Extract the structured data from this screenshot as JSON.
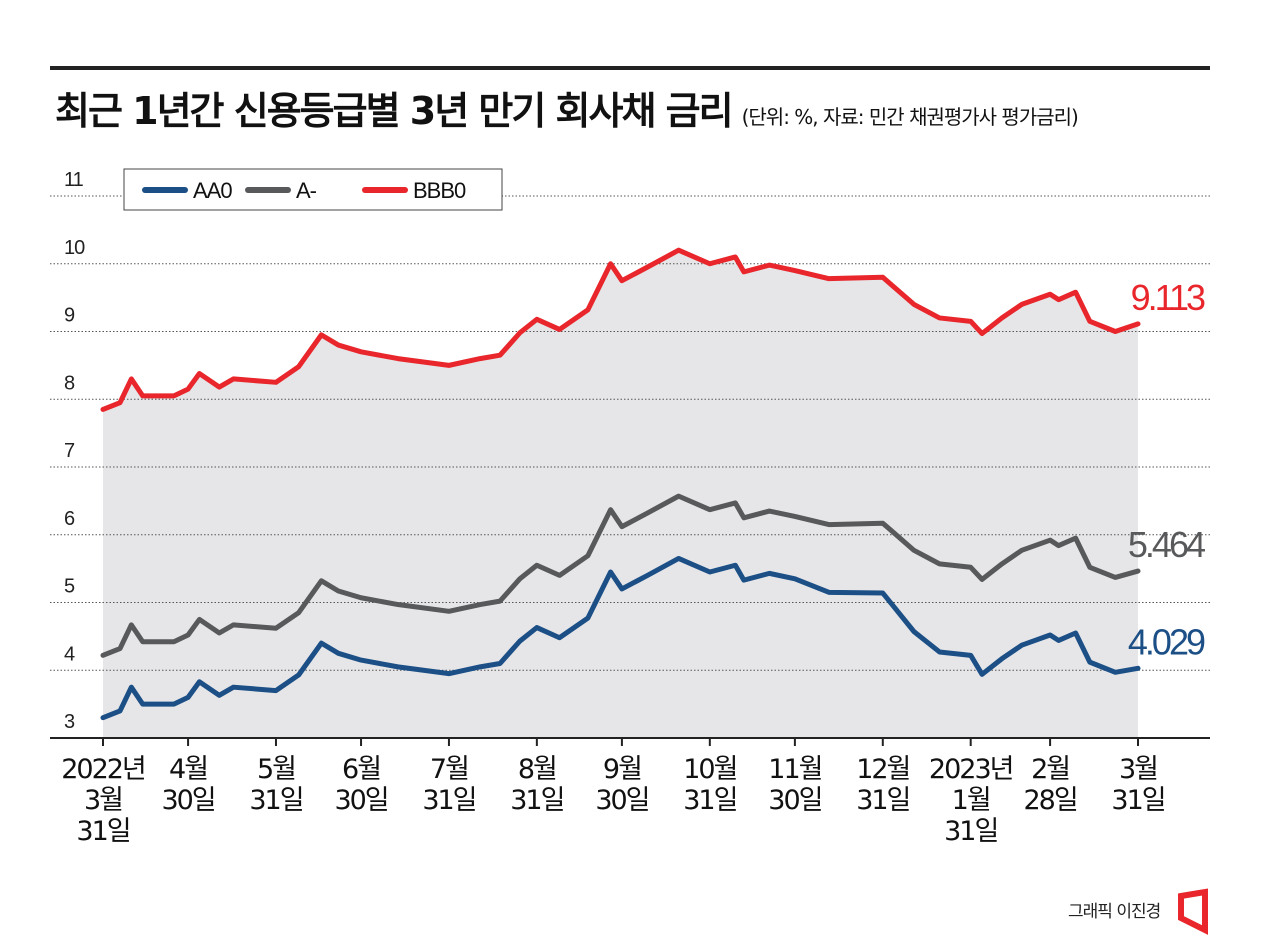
{
  "title": "최근 1년간 신용등급별 3년 만기 회사채 금리",
  "subtitle": "(단위: %, 자료: 민간 채권평가사 평가금리)",
  "credit": "그래픽 이진경",
  "chart_data": {
    "type": "line",
    "title": "최근 1년간 신용등급별 3년 만기 회사채 금리",
    "ylim": [
      3,
      11
    ],
    "yticks": [
      "3",
      "4",
      "5",
      "6",
      "7",
      "8",
      "9",
      "10",
      "11"
    ],
    "grid": true,
    "legend": "top-left",
    "xlim": [
      "2022-03-31",
      "2023-03-31"
    ],
    "xticks": [
      {
        "date": "2022-03-31",
        "label": [
          "2022년",
          "3월",
          "31일"
        ]
      },
      {
        "date": "2022-04-30",
        "label": [
          "4월",
          "30일"
        ]
      },
      {
        "date": "2022-05-31",
        "label": [
          "5월",
          "31일"
        ]
      },
      {
        "date": "2022-06-30",
        "label": [
          "6월",
          "30일"
        ]
      },
      {
        "date": "2022-07-31",
        "label": [
          "7월",
          "31일"
        ]
      },
      {
        "date": "2022-08-31",
        "label": [
          "8월",
          "31일"
        ]
      },
      {
        "date": "2022-09-30",
        "label": [
          "9월",
          "30일"
        ]
      },
      {
        "date": "2022-10-31",
        "label": [
          "10월",
          "31일"
        ]
      },
      {
        "date": "2022-11-30",
        "label": [
          "11월",
          "30일"
        ]
      },
      {
        "date": "2022-12-31",
        "label": [
          "12월",
          "31일"
        ]
      },
      {
        "date": "2023-01-31",
        "label": [
          "2023년",
          "1월",
          "31일"
        ]
      },
      {
        "date": "2023-02-28",
        "label": [
          "2월",
          "28일"
        ]
      },
      {
        "date": "2023-03-31",
        "label": [
          "3월",
          "31일"
        ]
      }
    ],
    "x": [
      "2022-03-31",
      "2022-04-06",
      "2022-04-10",
      "2022-04-14",
      "2022-04-25",
      "2022-04-30",
      "2022-05-04",
      "2022-05-11",
      "2022-05-16",
      "2022-05-31",
      "2022-06-08",
      "2022-06-16",
      "2022-06-22",
      "2022-06-30",
      "2022-07-13",
      "2022-07-31",
      "2022-08-11",
      "2022-08-18",
      "2022-08-25",
      "2022-08-31",
      "2022-09-08",
      "2022-09-18",
      "2022-09-26",
      "2022-09-30",
      "2022-10-09",
      "2022-10-20",
      "2022-10-31",
      "2022-11-09",
      "2022-11-12",
      "2022-11-21",
      "2022-11-30",
      "2022-12-12",
      "2022-12-31",
      "2023-01-11",
      "2023-01-20",
      "2023-01-31",
      "2023-02-04",
      "2023-02-11",
      "2023-02-18",
      "2023-02-28",
      "2023-03-03",
      "2023-03-09",
      "2023-03-14",
      "2023-03-23",
      "2023-03-31"
    ],
    "series": [
      {
        "name": "AA0",
        "color": "#1b4f86",
        "end_label": "4.029",
        "values": [
          3.3,
          3.4,
          3.75,
          3.5,
          3.5,
          3.6,
          3.83,
          3.63,
          3.75,
          3.7,
          3.93,
          4.4,
          4.25,
          4.15,
          4.05,
          3.95,
          4.05,
          4.1,
          4.43,
          4.63,
          4.48,
          4.77,
          5.45,
          5.2,
          5.4,
          5.65,
          5.45,
          5.55,
          5.33,
          5.43,
          5.35,
          5.15,
          5.14,
          4.57,
          4.27,
          4.22,
          3.94,
          4.17,
          4.37,
          4.52,
          4.44,
          4.55,
          4.12,
          3.97,
          4.029
        ]
      },
      {
        "name": "A-",
        "color": "#58595b",
        "end_label": "5.464",
        "values": [
          4.22,
          4.32,
          4.67,
          4.42,
          4.42,
          4.52,
          4.75,
          4.55,
          4.67,
          4.62,
          4.85,
          5.32,
          5.17,
          5.07,
          4.97,
          4.87,
          4.97,
          5.02,
          5.35,
          5.55,
          5.4,
          5.69,
          6.37,
          6.12,
          6.32,
          6.57,
          6.37,
          6.47,
          6.25,
          6.35,
          6.27,
          6.15,
          6.17,
          5.77,
          5.57,
          5.52,
          5.34,
          5.57,
          5.77,
          5.92,
          5.84,
          5.95,
          5.52,
          5.37,
          5.464
        ]
      },
      {
        "name": "BBB0",
        "color": "#e8262b",
        "end_label": "9.113",
        "values": [
          7.85,
          7.95,
          8.3,
          8.05,
          8.05,
          8.15,
          8.38,
          8.18,
          8.3,
          8.25,
          8.48,
          8.95,
          8.8,
          8.7,
          8.6,
          8.5,
          8.6,
          8.65,
          8.98,
          9.18,
          9.03,
          9.32,
          10.0,
          9.75,
          9.95,
          10.2,
          10.0,
          10.1,
          9.88,
          9.98,
          9.9,
          9.78,
          9.8,
          9.4,
          9.2,
          9.15,
          8.97,
          9.2,
          9.4,
          9.55,
          9.47,
          9.58,
          9.15,
          9.0,
          9.113
        ]
      }
    ],
    "area_fill": "#e6e6e8"
  }
}
